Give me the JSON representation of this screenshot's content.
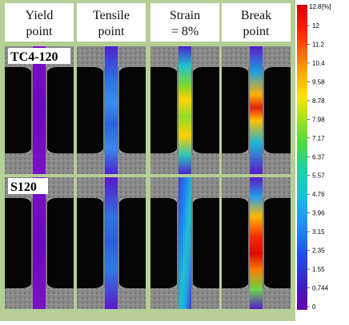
{
  "columns": [
    {
      "line1": "Yield",
      "line2": "point"
    },
    {
      "line1": "Tensile",
      "line2": "point"
    },
    {
      "line1": "Strain",
      "line2": "= 8%"
    },
    {
      "line1": "Break",
      "line2": "point"
    }
  ],
  "rows": [
    {
      "label": "TC4-120"
    },
    {
      "label": "S120"
    }
  ],
  "colorbar": {
    "unit": "[%]",
    "max_label": "12.8",
    "ticks": [
      "12",
      "11.2",
      "10.4",
      "9.58",
      "8.78",
      "7.98",
      "7.17",
      "6.37",
      "5.57",
      "4.76",
      "3.96",
      "3.15",
      "2.35",
      "1.55",
      "0.744",
      "0"
    ],
    "colors": [
      "#6a00a8",
      "#3d1fc9",
      "#1f4ff0",
      "#1e90ff",
      "#17c3d6",
      "#1fd39a",
      "#4fdc3c",
      "#a8e31c",
      "#ffe300",
      "#ffb000",
      "#ff6a00",
      "#ff1e00",
      "#d40000"
    ]
  },
  "strain_maps": {
    "row1": [
      "yield-uniform",
      "tensile-mild",
      "strain8-mid",
      "break-local"
    ],
    "row2": [
      "yield-uniform",
      "tensile-mild",
      "strain8-band",
      "break-local"
    ]
  },
  "frame_color": "#b5cf96"
}
